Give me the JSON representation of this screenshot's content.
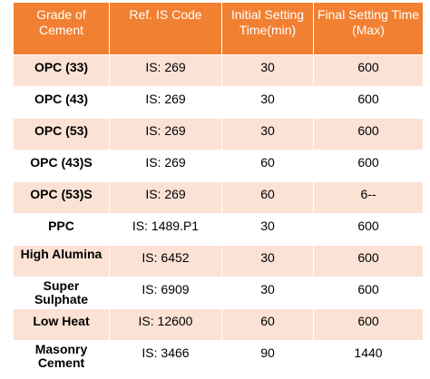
{
  "colors": {
    "header_bg": "#f28032",
    "odd_row_bg": "#fbe2d5",
    "even_row_bg": "#ffffff",
    "border": "#ffffff"
  },
  "table": {
    "headers": [
      "Grade of Cement",
      "Ref. IS Code",
      "Initial Setting Time(min)",
      "Final Setting Time (Max)"
    ],
    "rows": [
      {
        "grade": "OPC (33)",
        "code": "IS: 269",
        "initial": "30",
        "final": "600"
      },
      {
        "grade": "OPC (43)",
        "code": "IS: 269",
        "initial": "30",
        "final": "600"
      },
      {
        "grade": "OPC (53)",
        "code": "IS: 269",
        "initial": "30",
        "final": "600"
      },
      {
        "grade": "OPC (43)S",
        "code": "IS: 269",
        "initial": "60",
        "final": "600"
      },
      {
        "grade": "OPC (53)S",
        "code": "IS: 269",
        "initial": "60",
        "final": "6--"
      },
      {
        "grade": "PPC",
        "code": "IS: 1489.P1",
        "initial": "30",
        "final": "600"
      },
      {
        "grade": "High Alumina",
        "code": "IS: 6452",
        "initial": "30",
        "final": "600"
      },
      {
        "grade": "Super Sulphate",
        "code": "IS: 6909",
        "initial": "30",
        "final": "600"
      },
      {
        "grade": "Low Heat",
        "code": "IS: 12600",
        "initial": "60",
        "final": "600"
      },
      {
        "grade": "Masonry Cement",
        "code": "IS: 3466",
        "initial": "90",
        "final": "1440"
      }
    ]
  }
}
